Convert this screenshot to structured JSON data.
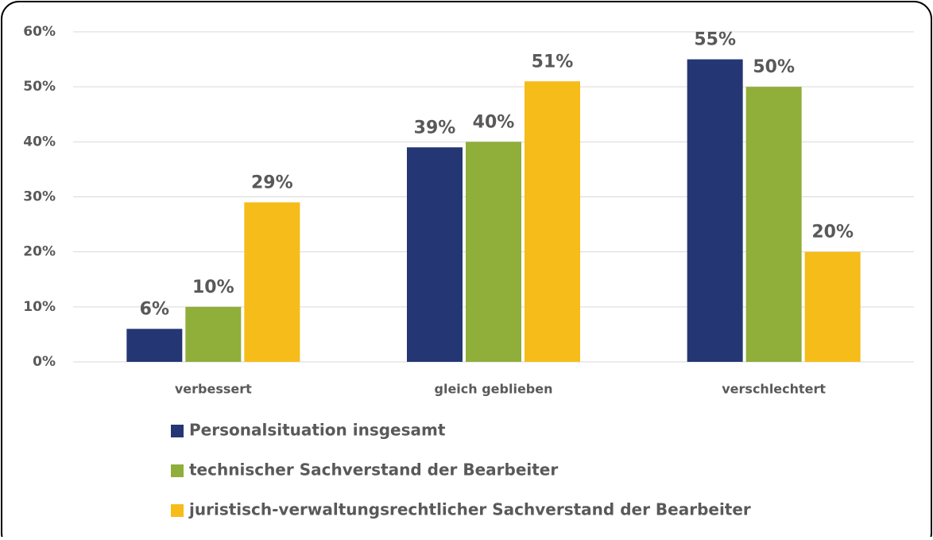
{
  "chart_data": {
    "type": "bar",
    "categories": [
      "verbessert",
      "gleich geblieben",
      "verschlechtert"
    ],
    "series": [
      {
        "name": "Personalsituation insgesamt",
        "color": "#243673",
        "values": [
          6,
          39,
          55
        ],
        "value_labels": [
          "6%",
          "39%",
          "55%"
        ]
      },
      {
        "name": "technischer Sachverstand der Bearbeiter",
        "color": "#8fae3a",
        "values": [
          10,
          40,
          50
        ],
        "value_labels": [
          "10%",
          "40%",
          "50%"
        ]
      },
      {
        "name": "juristisch-verwaltungsrechtlicher Sachverstand der Bearbeiter",
        "color": "#f5bc1a",
        "values": [
          29,
          51,
          20
        ],
        "value_labels": [
          "29%",
          "51%",
          "20%"
        ]
      }
    ],
    "ylim": [
      0,
      60
    ],
    "yticks": [
      {
        "value": 0,
        "label": "0%"
      },
      {
        "value": 10,
        "label": "10%"
      },
      {
        "value": 20,
        "label": "20%"
      },
      {
        "value": 30,
        "label": "30%"
      },
      {
        "value": 40,
        "label": "40%"
      },
      {
        "value": 50,
        "label": "50%"
      },
      {
        "value": 60,
        "label": "60%"
      }
    ],
    "grid": true,
    "legend": "bottom"
  }
}
